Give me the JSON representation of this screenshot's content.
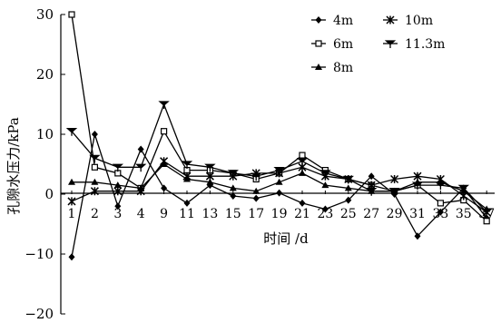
{
  "chart_data": {
    "type": "line",
    "xlabel": "时间 /d",
    "ylabel": "孔隙水压力/kPa",
    "ylim": [
      -20,
      30
    ],
    "yticks": [
      -20,
      -10,
      0,
      10,
      20,
      30
    ],
    "categories": [
      "1",
      "2",
      "3",
      "4",
      "9",
      "11",
      "13",
      "15",
      "17",
      "19",
      "21",
      "23",
      "25",
      "27",
      "29",
      "31",
      "33",
      "35",
      "37"
    ],
    "grid": false,
    "legend_position": "top-right",
    "series": [
      {
        "name": "4m",
        "marker": "diamond",
        "values": [
          -10.5,
          10,
          -2,
          7.5,
          1,
          -1.5,
          1.5,
          -0.3,
          -0.7,
          0.2,
          -1.5,
          -2.5,
          -1,
          3,
          0,
          -7,
          -3,
          1,
          -4
        ]
      },
      {
        "name": "6m",
        "marker": "open-square",
        "values": [
          30,
          4.5,
          3.5,
          1,
          10.5,
          4,
          4,
          3.5,
          2.5,
          3.5,
          6.5,
          4,
          2.5,
          1.5,
          0.5,
          1.5,
          -1.5,
          -1,
          -4.5
        ]
      },
      {
        "name": "8m",
        "marker": "triangle",
        "values": [
          2,
          2,
          1.5,
          1,
          5,
          2.5,
          2,
          1,
          0.5,
          2,
          3.5,
          1.5,
          1,
          0.5,
          0.5,
          2,
          2,
          0.5,
          -2.5
        ]
      },
      {
        "name": "10m",
        "marker": "asterisk",
        "values": [
          -1.2,
          0.5,
          0.5,
          0.5,
          5.5,
          3,
          3,
          3,
          3.5,
          3.5,
          4.5,
          3,
          2.5,
          1.5,
          2.5,
          3,
          2.5,
          -0.3,
          -3
        ]
      },
      {
        "name": "11.3m",
        "marker": "star",
        "values": [
          10.5,
          6,
          4.5,
          4.5,
          15,
          5,
          4.5,
          3.5,
          3,
          4,
          5.5,
          3.5,
          2.5,
          0.5,
          0.5,
          1.5,
          1.5,
          1,
          -3
        ]
      }
    ]
  }
}
